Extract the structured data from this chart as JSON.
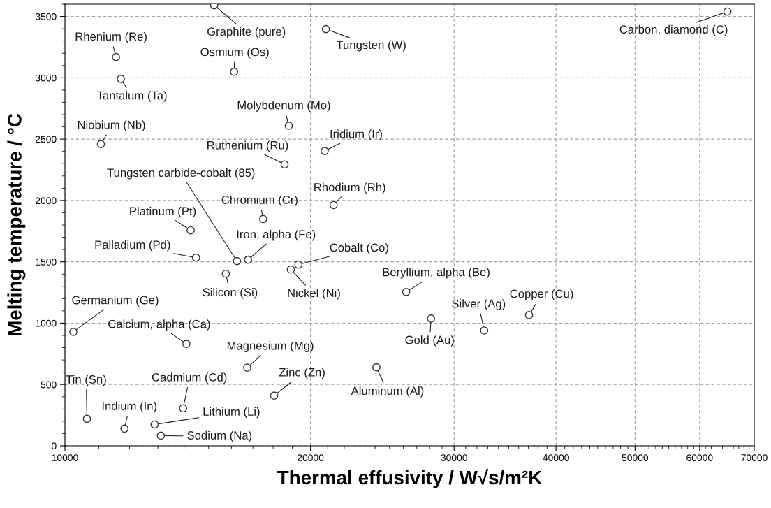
{
  "chart_data": {
    "type": "scatter",
    "xlabel": "Thermal effusivity / W√s/m²K",
    "ylabel": "Melting temperature / °C",
    "log": "x",
    "grid": true,
    "marker": "circle",
    "xlim": [
      10000,
      70000
    ],
    "xticks": [
      10000,
      20000,
      30000,
      40000,
      50000,
      60000,
      70000
    ],
    "ylim": [
      0,
      3600
    ],
    "yticks": [
      0,
      500,
      1000,
      1500,
      2000,
      2500,
      3000,
      3500
    ],
    "series": [
      {
        "color": "#333333",
        "x": [
          11550,
          15240,
          16120,
          20890,
          64900,
          11710,
          18810,
          11070,
          20820,
          18590,
          16250,
          21350,
          17500,
          14260,
          16770,
          14480,
          19330,
          26200,
          15750,
          18920,
          10240,
          37070,
          32660,
          14090,
          28110,
          16730,
          18050,
          24090,
          10640,
          13960,
          11830,
          12880,
          13110
        ],
        "values": [
          3169,
          3591,
          3049,
          3397,
          3540,
          2991,
          2609,
          2460,
          2403,
          2294,
          1506,
          1963,
          1849,
          1757,
          1517,
          1534,
          1477,
          1254,
          1403,
          1437,
          929,
          1066,
          940,
          831,
          1037,
          637,
          409,
          640,
          220,
          306,
          140,
          174,
          83
        ]
      }
    ],
    "annotations": [
      {
        "text": "Rhenium (Re)",
        "x": 11550,
        "y": 3169
      },
      {
        "text": "Graphite (pure)",
        "x": 15240,
        "y": 3591
      },
      {
        "text": "Osmium (Os)",
        "x": 16120,
        "y": 3049
      },
      {
        "text": "Tungsten (W)",
        "x": 20890,
        "y": 3397
      },
      {
        "text": "Carbon, diamond (C)",
        "x": 64900,
        "y": 3540
      },
      {
        "text": "Tantalum (Ta)",
        "x": 11710,
        "y": 2991
      },
      {
        "text": "Molybdenum (Mo)",
        "x": 18810,
        "y": 2609
      },
      {
        "text": "Niobium (Nb)",
        "x": 11070,
        "y": 2460
      },
      {
        "text": "Iridium (Ir)",
        "x": 20820,
        "y": 2403
      },
      {
        "text": "Ruthenium (Ru)",
        "x": 18590,
        "y": 2294
      },
      {
        "text": "Tungsten carbide-cobalt (85)",
        "x": 16250,
        "y": 1506
      },
      {
        "text": "Rhodium (Rh)",
        "x": 21350,
        "y": 1963
      },
      {
        "text": "Chromium (Cr)",
        "x": 17500,
        "y": 1849
      },
      {
        "text": "Platinum (Pt)",
        "x": 14260,
        "y": 1757
      },
      {
        "text": "Iron, alpha (Fe)",
        "x": 16770,
        "y": 1517
      },
      {
        "text": "Palladium (Pd)",
        "x": 14480,
        "y": 1534
      },
      {
        "text": "Cobalt (Co)",
        "x": 19330,
        "y": 1477
      },
      {
        "text": "Beryllium, alpha (Be)",
        "x": 26200,
        "y": 1254
      },
      {
        "text": "Silicon (Si)",
        "x": 15750,
        "y": 1403
      },
      {
        "text": "Nickel (Ni)",
        "x": 18920,
        "y": 1437
      },
      {
        "text": "Germanium (Ge)",
        "x": 10240,
        "y": 929
      },
      {
        "text": "Copper (Cu)",
        "x": 37070,
        "y": 1066
      },
      {
        "text": "Silver (Ag)",
        "x": 32660,
        "y": 940
      },
      {
        "text": "Calcium, alpha (Ca)",
        "x": 14090,
        "y": 831
      },
      {
        "text": "Gold (Au)",
        "x": 28110,
        "y": 1037
      },
      {
        "text": "Magnesium (Mg)",
        "x": 16730,
        "y": 637
      },
      {
        "text": "Zinc (Zn)",
        "x": 18050,
        "y": 409
      },
      {
        "text": "Aluminum (Al)",
        "x": 24090,
        "y": 640
      },
      {
        "text": "Tin (Sn)",
        "x": 10640,
        "y": 220
      },
      {
        "text": "Cadmium (Cd)",
        "x": 13960,
        "y": 306
      },
      {
        "text": "Indium (In)",
        "x": 11830,
        "y": 140
      },
      {
        "text": "Lithium (Li)",
        "x": 12880,
        "y": 174
      },
      {
        "text": "Sodium (Na)",
        "x": 13110,
        "y": 83
      }
    ]
  }
}
